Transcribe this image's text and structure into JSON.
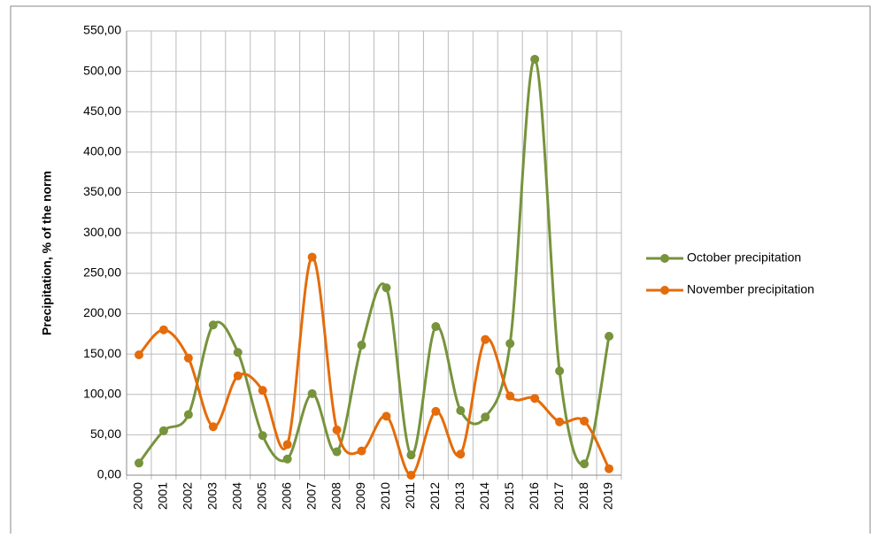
{
  "chart_data": {
    "type": "line",
    "y_label": "Precipitation, % of the norm",
    "categories": [
      "2000",
      "2001",
      "2002",
      "2003",
      "2004",
      "2005",
      "2006",
      "2007",
      "2008",
      "2009",
      "2010",
      "2011",
      "2012",
      "2013",
      "2014",
      "2015",
      "2016",
      "2017",
      "2018",
      "2019"
    ],
    "series": [
      {
        "name": "October precipitation",
        "color": "#77933c",
        "values": [
          15,
          55,
          75,
          186,
          152,
          49,
          20,
          101,
          29,
          161,
          232,
          25,
          184,
          80,
          72,
          163,
          515,
          129,
          14,
          172
        ]
      },
      {
        "name": "November precipitation",
        "color": "#e46c0a",
        "values": [
          149,
          180,
          145,
          60,
          123,
          105,
          38,
          270,
          56,
          30,
          73,
          0,
          79,
          26,
          168,
          98,
          95,
          66,
          67,
          8
        ]
      }
    ],
    "ylim": [
      0,
      550
    ],
    "yticks": [
      {
        "value": 0,
        "label": "0,00"
      },
      {
        "value": 50,
        "label": "50,00"
      },
      {
        "value": 100,
        "label": "100,00"
      },
      {
        "value": 150,
        "label": "150,00"
      },
      {
        "value": 200,
        "label": "200,00"
      },
      {
        "value": 250,
        "label": "250,00"
      },
      {
        "value": 300,
        "label": "300,00"
      },
      {
        "value": 350,
        "label": "350,00"
      },
      {
        "value": 400,
        "label": "400,00"
      },
      {
        "value": 450,
        "label": "450,00"
      },
      {
        "value": 500,
        "label": "500,00"
      },
      {
        "value": 550,
        "label": "550,00"
      }
    ],
    "grid": true,
    "smooth": true,
    "legend": "right"
  }
}
